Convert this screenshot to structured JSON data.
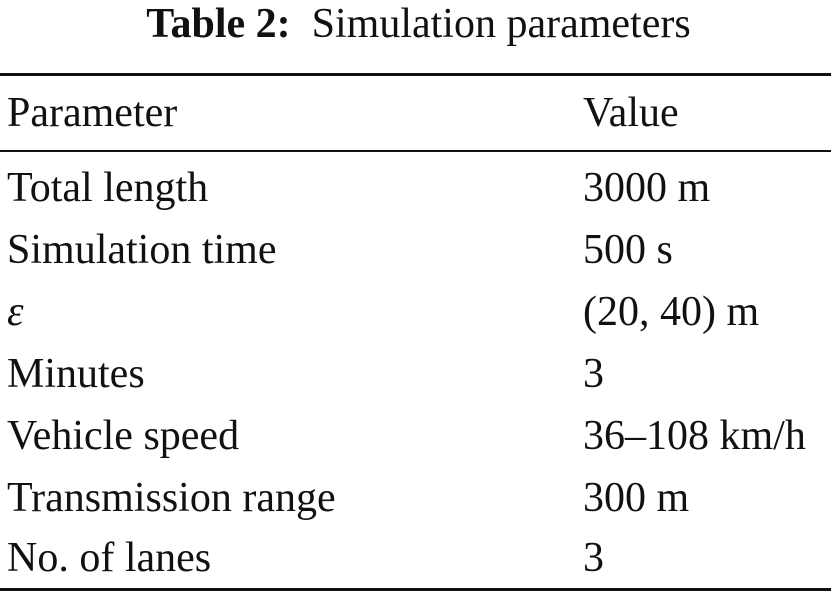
{
  "caption": {
    "label": "Table 2:",
    "title": "Simulation parameters"
  },
  "table": {
    "headers": {
      "parameter": "Parameter",
      "value": "Value"
    },
    "rows": [
      {
        "parameter": "Total length",
        "value": "3000 m"
      },
      {
        "parameter": "Simulation time",
        "value": "500 s"
      },
      {
        "parameter": "ε",
        "value": "(20, 40) m"
      },
      {
        "parameter": "Minutes",
        "value": "3"
      },
      {
        "parameter": "Vehicle speed",
        "value": "36–108 km/h"
      },
      {
        "parameter": "Transmission range",
        "value": "300 m"
      },
      {
        "parameter": "No. of lanes",
        "value": "3"
      }
    ]
  }
}
